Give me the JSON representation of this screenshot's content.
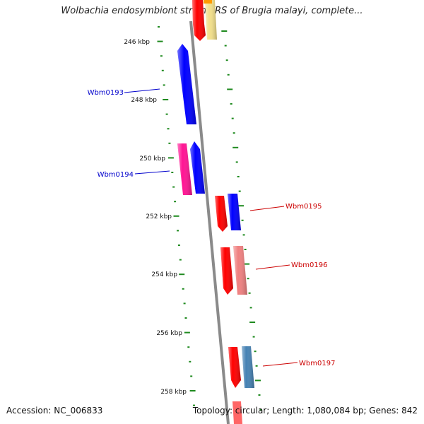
{
  "title": "Wolbachia endosymbiont strain TRS of Brugia malayi, complete...",
  "footer": {
    "accession": "Accession: NC_006833",
    "stats": "Topology: circular; Length: 1,080,084 bp; Genes: 842"
  },
  "colors": {
    "backbone": "#8a8a8a",
    "tick": "#1f8a1f",
    "label_left": "#0000cc",
    "label_right": "#cc0000",
    "blue": "#0000ff",
    "red": "#ff0000",
    "magenta": "#ff1493",
    "pink": "#f08080",
    "yellow": "#f3e08a",
    "orange": "#ff9900",
    "steelblue": "#4682b4"
  },
  "scale_labels": [
    "246 kbp",
    "248 kbp",
    "250 kbp",
    "252 kbp",
    "254 kbp",
    "256 kbp",
    "258 kbp"
  ],
  "gene_labels": [
    {
      "text": "Wbm0193",
      "side": "left"
    },
    {
      "text": "Wbm0194",
      "side": "left"
    },
    {
      "text": "Wbm0195",
      "side": "right"
    },
    {
      "text": "Wbm0196",
      "side": "right"
    },
    {
      "text": "Wbm0197",
      "side": "right"
    }
  ]
}
